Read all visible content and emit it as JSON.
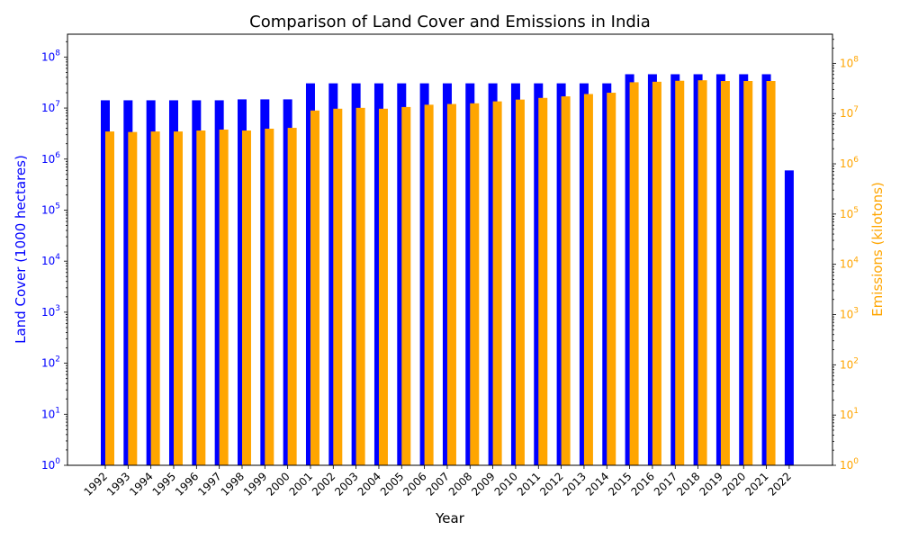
{
  "chart_data": {
    "type": "bar",
    "title": "Comparison of Land Cover and Emissions in India",
    "xlabel": "Year",
    "ylabel_left": "Land Cover (1000 hectares)",
    "ylabel_right": "Emissions (kilotons)",
    "y_scale": "log",
    "ylim_left": [
      1,
      280000000
    ],
    "ylim_right": [
      1,
      380000000
    ],
    "left_ticks": [
      "10^0",
      "10^1",
      "10^2",
      "10^3",
      "10^4",
      "10^5",
      "10^6",
      "10^7",
      "10^8"
    ],
    "right_ticks": [
      "10^0",
      "10^1",
      "10^2",
      "10^3",
      "10^4",
      "10^5",
      "10^6",
      "10^7",
      "10^8"
    ],
    "categories": [
      "1992",
      "1993",
      "1994",
      "1995",
      "1996",
      "1997",
      "1998",
      "1999",
      "2000",
      "2001",
      "2002",
      "2003",
      "2004",
      "2005",
      "2006",
      "2007",
      "2008",
      "2009",
      "2010",
      "2011",
      "2012",
      "2013",
      "2014",
      "2015",
      "2016",
      "2017",
      "2018",
      "2019",
      "2020",
      "2021",
      "2022"
    ],
    "series": [
      {
        "name": "Land Cover",
        "axis": "left",
        "color": "#0000ff",
        "values": [
          14200000,
          14200000,
          14200000,
          14200000,
          14200000,
          14200000,
          14800000,
          14800000,
          14800000,
          30500000,
          30500000,
          30500000,
          30500000,
          30500000,
          30500000,
          30500000,
          30500000,
          30500000,
          30500000,
          30500000,
          30500000,
          30500000,
          30500000,
          46000000,
          46000000,
          46000000,
          46000000,
          46000000,
          46000000,
          46000000,
          600000
        ]
      },
      {
        "name": "Emissions",
        "axis": "right",
        "color": "#ffa500",
        "values": [
          4400000,
          4300000,
          4400000,
          4400000,
          4600000,
          4800000,
          4600000,
          5000000,
          5200000,
          11500000,
          12500000,
          13000000,
          12500000,
          13500000,
          15000000,
          15500000,
          16000000,
          17500000,
          19000000,
          20500000,
          22000000,
          24500000,
          26000000,
          42000000,
          43000000,
          45000000,
          46000000,
          44500000,
          44500000,
          44500000,
          null
        ]
      }
    ],
    "colors": {
      "left_axis": "#0000ff",
      "right_axis": "#ffa500",
      "frame": "#000000"
    }
  }
}
